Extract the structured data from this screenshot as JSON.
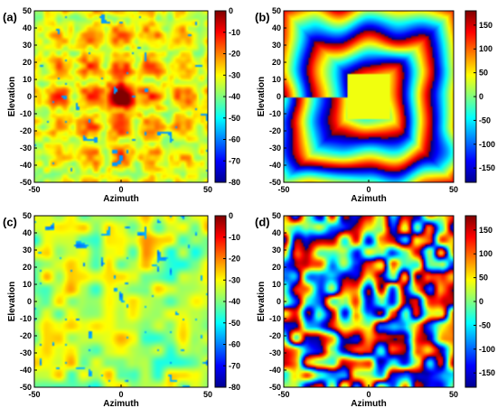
{
  "chart_data": [
    {
      "panel": "(a)",
      "type": "heatmap",
      "xlabel": "Azimuth",
      "ylabel": "Elevation",
      "xlim": [
        -50,
        50
      ],
      "ylim": [
        -50,
        50
      ],
      "xticks": [
        -50,
        0,
        50
      ],
      "yticks": [
        50,
        40,
        30,
        20,
        10,
        0,
        -10,
        -20,
        -30,
        -40,
        -50
      ],
      "colorbar": {
        "range": [
          -80,
          0
        ],
        "ticks": [
          0,
          -10,
          -20,
          -30,
          -40,
          -50,
          -60,
          -70,
          -80
        ]
      },
      "pattern": "sidelobe-grid",
      "peak_at": [
        0,
        0
      ],
      "peak_value": 0,
      "background_value": -35
    },
    {
      "panel": "(b)",
      "type": "heatmap",
      "xlabel": "Azimuth",
      "ylabel": "Elevation",
      "xlim": [
        -50,
        50
      ],
      "ylim": [
        -50,
        50
      ],
      "xticks": [
        -50,
        0,
        50
      ],
      "yticks": [
        50,
        40,
        30,
        20,
        10,
        0,
        -10,
        -20,
        -30,
        -40,
        -50
      ],
      "colorbar": {
        "range": [
          -180,
          180
        ],
        "ticks": [
          150,
          100,
          50,
          0,
          -50,
          -100,
          -150
        ]
      },
      "pattern": "phase-rings",
      "center_value": 40
    },
    {
      "panel": "(c)",
      "type": "heatmap",
      "xlabel": "Azimuth",
      "ylabel": "Elevation",
      "xlim": [
        -50,
        50
      ],
      "ylim": [
        -50,
        50
      ],
      "xticks": [
        -50,
        0,
        50
      ],
      "yticks": [
        50,
        40,
        30,
        20,
        10,
        0,
        -10,
        -20,
        -30,
        -40,
        -50
      ],
      "colorbar": {
        "range": [
          -80,
          0
        ],
        "ticks": [
          0,
          -10,
          -20,
          -30,
          -40,
          -50,
          -60,
          -70,
          -80
        ]
      },
      "pattern": "noise-speckle",
      "background_value": -35
    },
    {
      "panel": "(d)",
      "type": "heatmap",
      "xlabel": "Azimuth",
      "ylabel": "Elevation",
      "xlim": [
        -50,
        50
      ],
      "ylim": [
        -50,
        50
      ],
      "xticks": [
        -50,
        0,
        50
      ],
      "yticks": [
        50,
        40,
        30,
        20,
        10,
        0,
        -10,
        -20,
        -30,
        -40,
        -50
      ],
      "colorbar": {
        "range": [
          -180,
          180
        ],
        "ticks": [
          150,
          100,
          50,
          0,
          -50,
          -100,
          -150
        ]
      },
      "pattern": "phase-noise"
    }
  ]
}
